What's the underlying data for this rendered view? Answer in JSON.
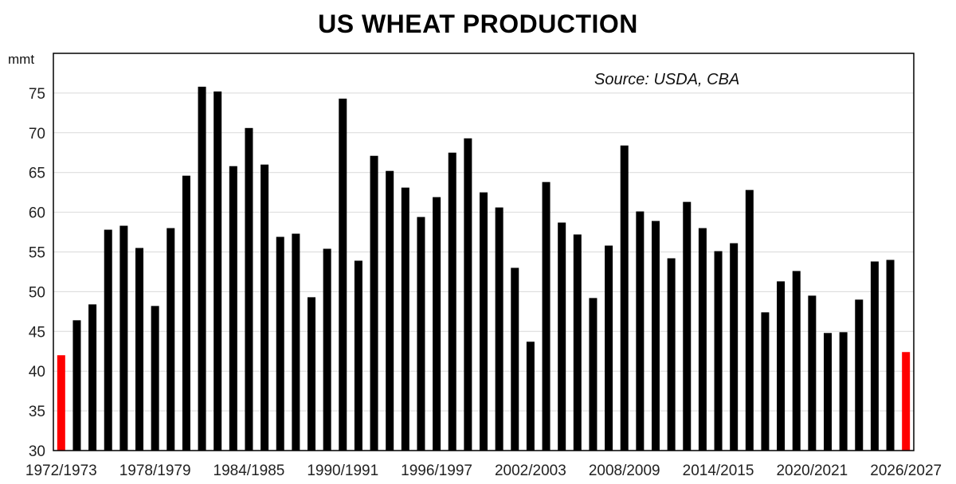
{
  "chart_data": {
    "type": "bar",
    "title": "US WHEAT PRODUCTION",
    "ylabel": "mmt",
    "xlabel": "",
    "annotation": "Source:  USDA, CBA",
    "ylim": [
      30,
      80
    ],
    "yticks": [
      30,
      35,
      40,
      45,
      50,
      55,
      60,
      65,
      70,
      75
    ],
    "grid": true,
    "categories": [
      "1972/1973",
      "1973/1974",
      "1974/1975",
      "1975/1976",
      "1976/1977",
      "1977/1978",
      "1978/1979",
      "1979/1980",
      "1980/1981",
      "1981/1982",
      "1982/1983",
      "1983/1984",
      "1984/1985",
      "1985/1986",
      "1986/1987",
      "1987/1988",
      "1988/1989",
      "1989/1990",
      "1990/1991",
      "1991/1992",
      "1992/1993",
      "1993/1994",
      "1994/1995",
      "1995/1996",
      "1996/1997",
      "1997/1998",
      "1998/1999",
      "1999/2000",
      "2000/2001",
      "2001/2002",
      "2002/2003",
      "2003/2004",
      "2004/2005",
      "2005/2006",
      "2006/2007",
      "2007/2008",
      "2008/2009",
      "2009/2010",
      "2010/2011",
      "2011/2012",
      "2012/2013",
      "2013/2014",
      "2014/2015",
      "2015/2016",
      "2016/2017",
      "2017/2018",
      "2018/2019",
      "2019/2020",
      "2020/2021",
      "2021/2022",
      "2022/2023",
      "2023/2024",
      "2024/2025",
      "2025/2026",
      "2026/2027"
    ],
    "tick_labels": [
      "1972/1973",
      "1978/1979",
      "1984/1985",
      "1990/1991",
      "1996/1997",
      "2002/2003",
      "2008/2009",
      "2014/2015",
      "2020/2021",
      "2026/2027"
    ],
    "values": [
      42.0,
      46.4,
      48.4,
      57.8,
      58.3,
      55.5,
      48.2,
      58.0,
      64.6,
      75.8,
      75.2,
      65.8,
      70.6,
      66.0,
      56.9,
      57.3,
      49.3,
      55.4,
      74.3,
      53.9,
      67.1,
      65.2,
      63.1,
      59.4,
      61.9,
      67.5,
      69.3,
      62.5,
      60.6,
      53.0,
      43.7,
      63.8,
      58.7,
      57.2,
      49.2,
      55.8,
      68.4,
      60.1,
      58.9,
      54.2,
      61.3,
      58.0,
      55.1,
      56.1,
      62.8,
      47.4,
      51.3,
      52.6,
      49.5,
      44.8,
      44.9,
      49.0,
      53.8,
      54.0,
      42.4
    ],
    "colors": {
      "default": "#000000",
      "highlight": "#ff0000",
      "grid": "#d9d9d9",
      "axis": "#000000"
    },
    "highlighted_categories": [
      "1972/1973",
      "2026/2027"
    ]
  }
}
